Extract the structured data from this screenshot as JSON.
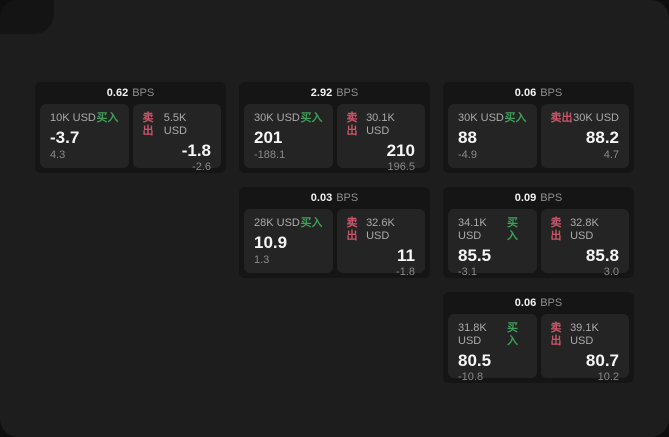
{
  "labels": {
    "bps": "BPS",
    "buy": "买入",
    "sell": "卖出"
  },
  "colors": {
    "buy": "#3f9e58",
    "sell": "#c9566b",
    "surface": "#1d1d1d",
    "card": "#151515",
    "panel": "#242424"
  },
  "cards": [
    {
      "bps": "0.62",
      "buy": {
        "amount": "10K USD",
        "price": "-3.7",
        "delta": "4.3"
      },
      "sell": {
        "amount": "5.5K USD",
        "price": "-1.8",
        "delta": "-2.6"
      }
    },
    {
      "bps": "2.92",
      "buy": {
        "amount": "30K USD",
        "price": "201",
        "delta": "-188.1"
      },
      "sell": {
        "amount": "30.1K USD",
        "price": "210",
        "delta": "196.5"
      }
    },
    {
      "bps": "0.06",
      "buy": {
        "amount": "30K USD",
        "price": "88",
        "delta": "-4.9"
      },
      "sell": {
        "amount": "30K USD",
        "price": "88.2",
        "delta": "4.7"
      }
    },
    {
      "bps": "0.03",
      "buy": {
        "amount": "28K USD",
        "price": "10.9",
        "delta": "1.3"
      },
      "sell": {
        "amount": "32.6K USD",
        "price": "11",
        "delta": "-1.8"
      }
    },
    {
      "bps": "0.09",
      "buy": {
        "amount": "34.1K USD",
        "price": "85.5",
        "delta": "-3.1"
      },
      "sell": {
        "amount": "32.8K USD",
        "price": "85.8",
        "delta": "3.0"
      }
    },
    {
      "bps": "0.06",
      "buy": {
        "amount": "31.8K USD",
        "price": "80.5",
        "delta": "-10.8"
      },
      "sell": {
        "amount": "39.1K USD",
        "price": "80.7",
        "delta": "10.2"
      }
    }
  ]
}
